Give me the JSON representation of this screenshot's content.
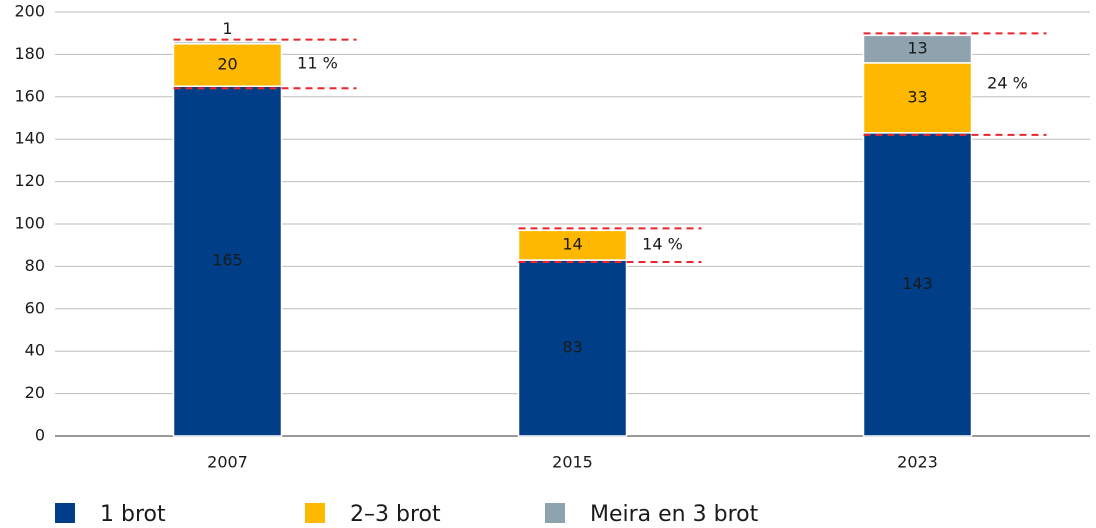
{
  "chart_data": {
    "type": "stacked_bar",
    "categories": [
      "2007",
      "2015",
      "2023"
    ],
    "series": [
      {
        "name": "1 brot",
        "color": "#003f87",
        "values": [
          165,
          83,
          143
        ]
      },
      {
        "name": "2–3 brot",
        "color": "#ffb800",
        "values": [
          20,
          14,
          33
        ]
      },
      {
        "name": "Meira en 3 brot",
        "color": "#8fa3ae",
        "values": [
          1,
          null,
          13
        ]
      }
    ],
    "annotations": [
      "11 %",
      "14 %",
      "24 %"
    ],
    "annotation_color": "#e8262b",
    "ylim": [
      0,
      200
    ],
    "yticks": [
      0,
      20,
      40,
      60,
      80,
      100,
      120,
      140,
      160,
      180,
      200
    ],
    "grid": true
  }
}
